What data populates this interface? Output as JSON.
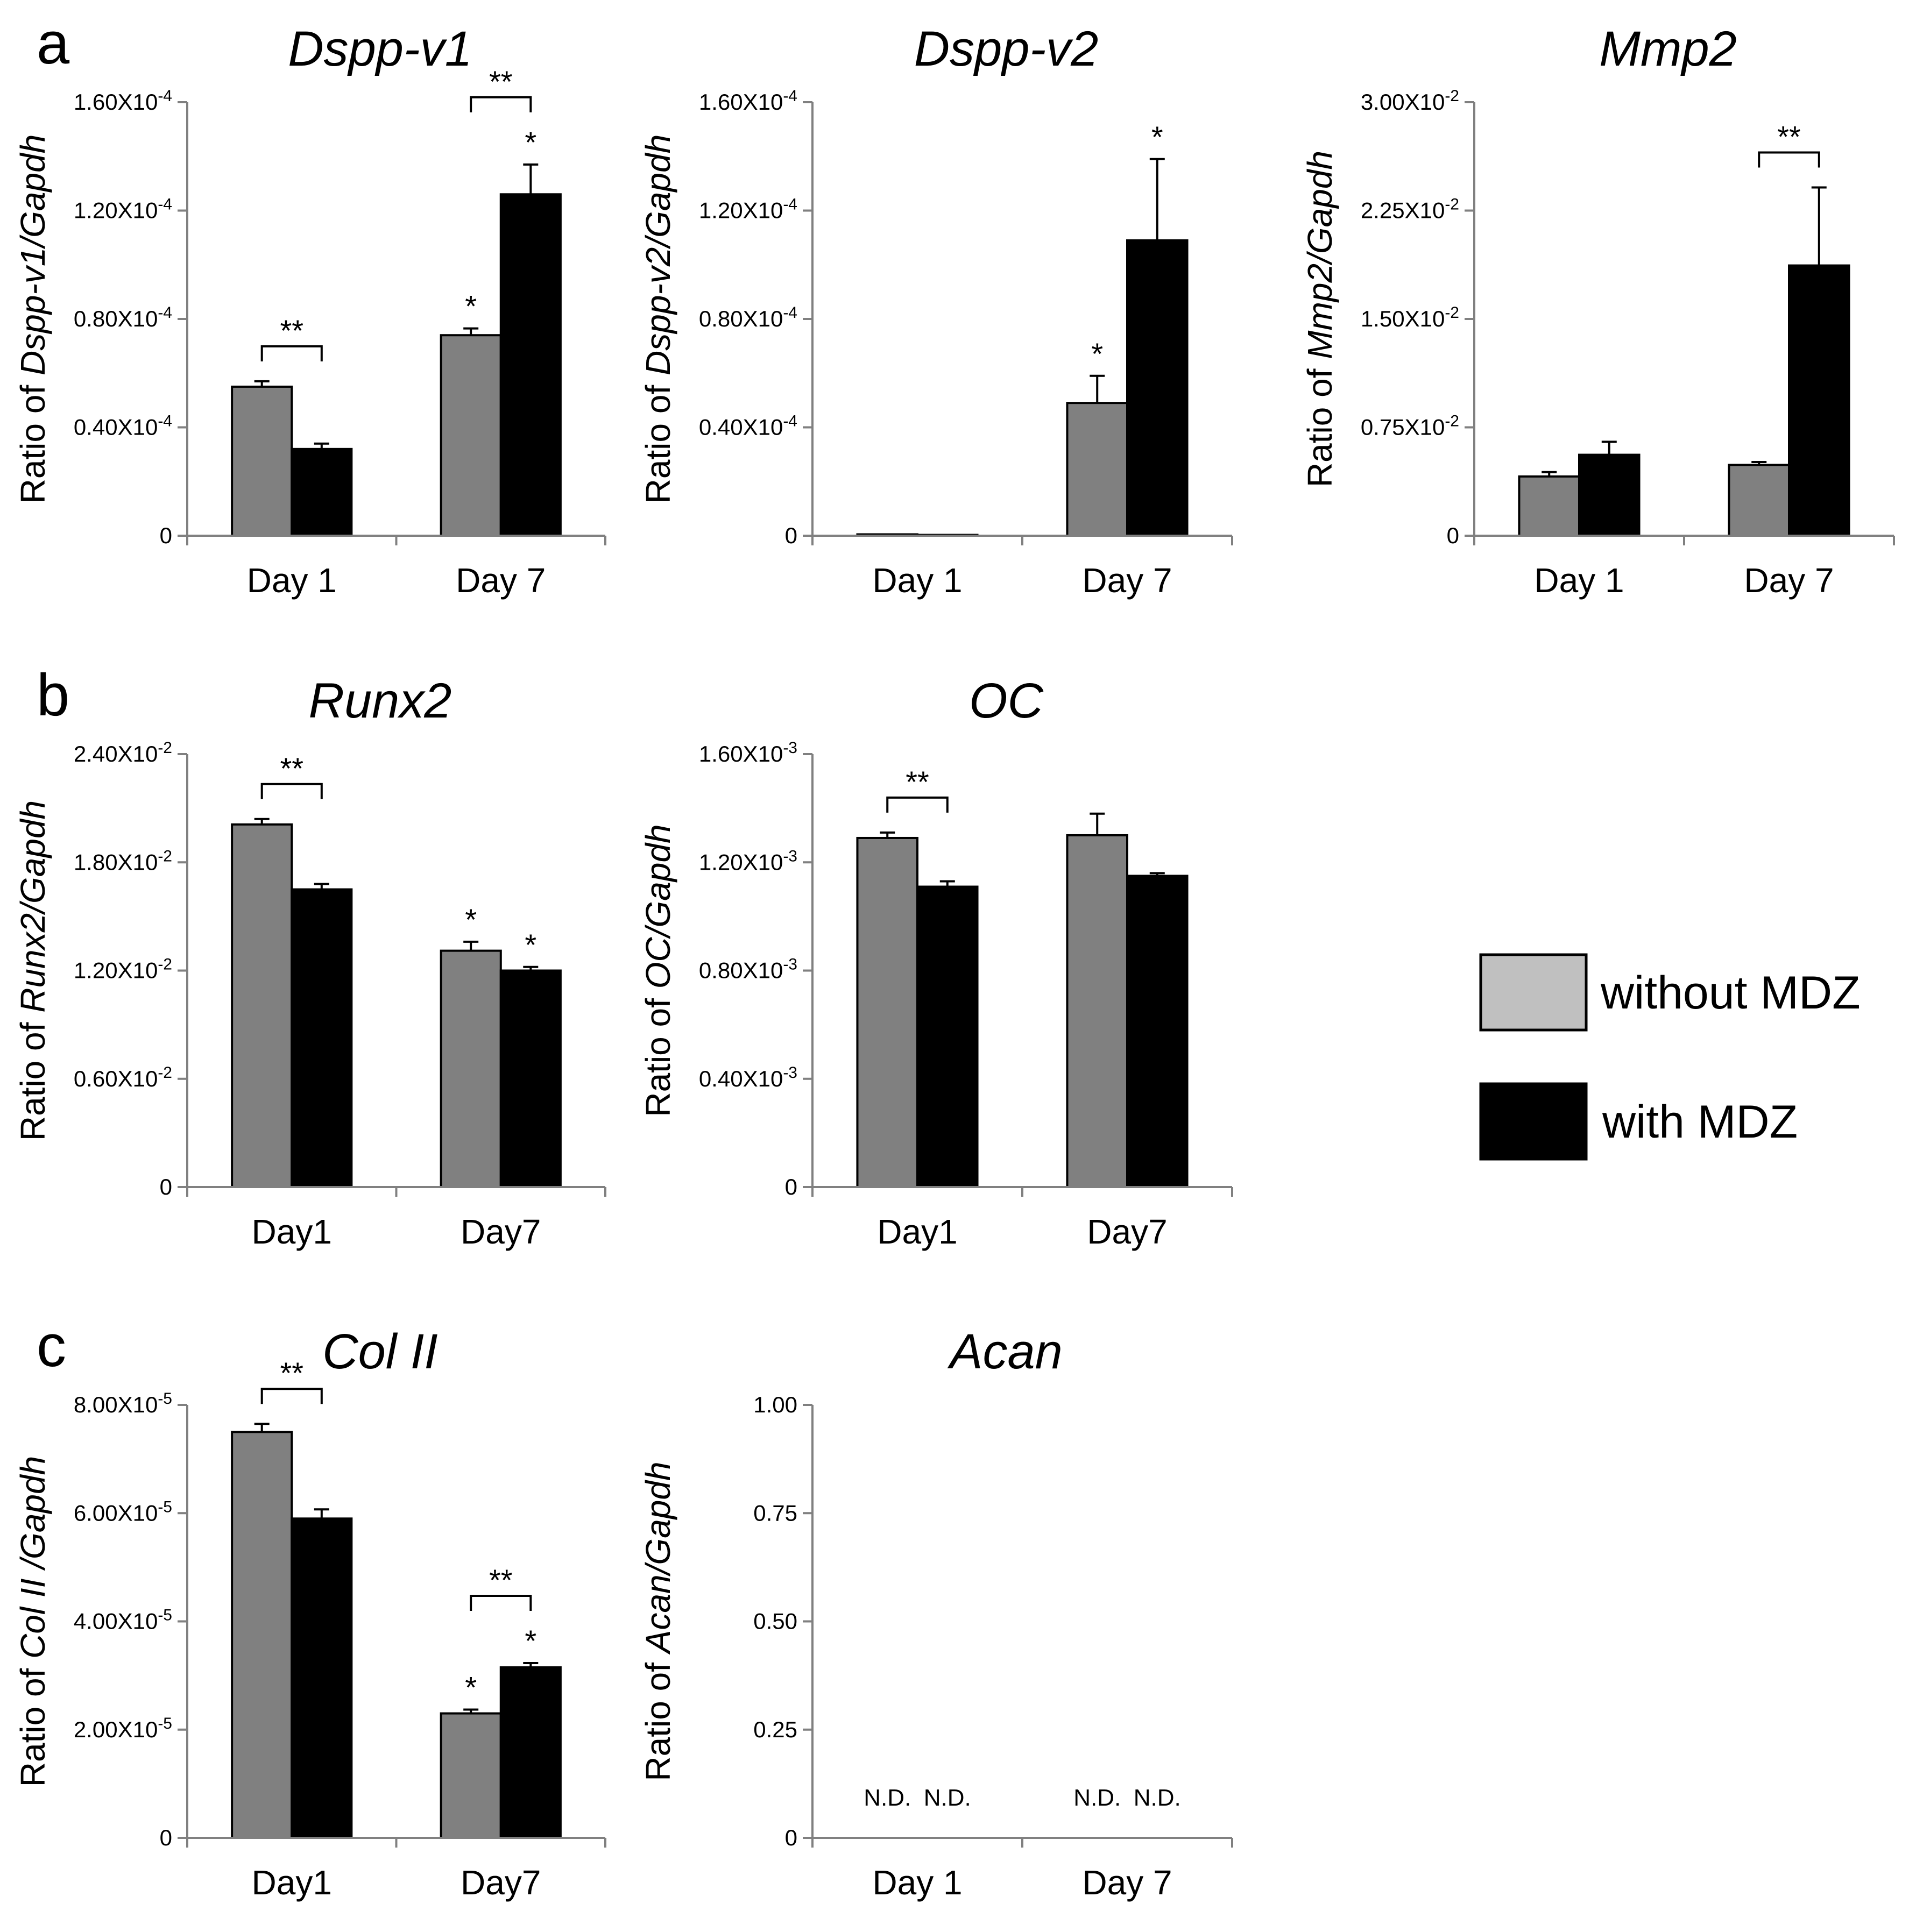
{
  "panel_labels": [
    "a",
    "b",
    "c"
  ],
  "legend": {
    "items": [
      {
        "label": "without MDZ",
        "color": "#c0c0c0"
      },
      {
        "label": "with MDZ",
        "color": "#000000"
      }
    ]
  },
  "colors": {
    "without": "#808080",
    "with": "#000000",
    "axis": "#808080"
  },
  "chart_data": [
    {
      "type": "bar",
      "panel": "a",
      "title": "Dspp-v1",
      "ylabel_prefix": "Ratio of ",
      "ylabel_italic": "Dspp-v1/Gapdh",
      "ylim": [
        0,
        0.00016
      ],
      "yticks": [
        "0",
        "0.40X10-4",
        "0.80X10-4",
        "1.20X10-4",
        "1.60X10-4"
      ],
      "categories": [
        "Day 1",
        "Day 7"
      ],
      "series": [
        {
          "name": "without MDZ",
          "values": [
            5.5e-05,
            7.4e-05
          ],
          "errors": [
            2e-06,
            2.5e-06
          ],
          "stars": [
            "",
            "*"
          ]
        },
        {
          "name": "with MDZ",
          "values": [
            3.2e-05,
            0.000126
          ],
          "errors": [
            2e-06,
            1.1e-05
          ],
          "stars": [
            "",
            "*"
          ]
        }
      ],
      "brackets": [
        {
          "category": 0,
          "label": "**"
        },
        {
          "category": 1,
          "label": "**"
        }
      ],
      "nd": false
    },
    {
      "type": "bar",
      "panel": "a",
      "title": "Dspp-v2",
      "ylabel_prefix": "Ratio of ",
      "ylabel_italic": "Dspp-v2/Gapdh",
      "ylim": [
        0,
        0.00016
      ],
      "yticks": [
        "0",
        "0.40X10-4",
        "0.80X10-4",
        "1.20X10-4",
        "1.60X10-4"
      ],
      "categories": [
        "Day 1",
        "Day 7"
      ],
      "series": [
        {
          "name": "without MDZ",
          "values": [
            5e-07,
            4.9e-05
          ],
          "errors": [
            0,
            1e-05
          ],
          "stars": [
            "",
            "*"
          ]
        },
        {
          "name": "with MDZ",
          "values": [
            3e-07,
            0.000109
          ],
          "errors": [
            0,
            3e-05
          ],
          "stars": [
            "",
            "*"
          ]
        }
      ],
      "brackets": [],
      "nd": false
    },
    {
      "type": "bar",
      "panel": "a",
      "title": "Mmp2",
      "ylabel_prefix": "Ratio of ",
      "ylabel_italic": "Mmp2/Gapdh",
      "ylim": [
        0,
        0.03
      ],
      "yticks": [
        "0",
        "0.75X10-2",
        "1.50X10-2",
        "2.25X10-2",
        "3.00X10-2"
      ],
      "categories": [
        "Day 1",
        "Day 7"
      ],
      "series": [
        {
          "name": "without MDZ",
          "values": [
            0.0041,
            0.0049
          ],
          "errors": [
            0.0003,
            0.0002
          ],
          "stars": [
            "",
            ""
          ]
        },
        {
          "name": "with MDZ",
          "values": [
            0.0056,
            0.0187
          ],
          "errors": [
            0.0009,
            0.0054
          ],
          "stars": [
            "",
            ""
          ]
        }
      ],
      "brackets": [
        {
          "category": 1,
          "label": "**"
        }
      ],
      "nd": false
    },
    {
      "type": "bar",
      "panel": "b",
      "title": "Runx2",
      "ylabel_prefix": "Ratio of ",
      "ylabel_italic": "Runx2/Gapdh",
      "ylim": [
        0,
        0.024
      ],
      "yticks": [
        "0",
        "0.60X10-2",
        "1.20X10-2",
        "1.80X10-2",
        "2.40X10-2"
      ],
      "categories": [
        "Day1",
        "Day7"
      ],
      "series": [
        {
          "name": "without MDZ",
          "values": [
            0.0201,
            0.0131
          ],
          "errors": [
            0.0003,
            0.0005
          ],
          "stars": [
            "",
            "*"
          ]
        },
        {
          "name": "with MDZ",
          "values": [
            0.0165,
            0.012
          ],
          "errors": [
            0.0003,
            0.0002
          ],
          "stars": [
            "",
            "*"
          ]
        }
      ],
      "brackets": [
        {
          "category": 0,
          "label": "**"
        }
      ],
      "nd": false
    },
    {
      "type": "bar",
      "panel": "b",
      "title": "OC",
      "ylabel_prefix": "Ratio of ",
      "ylabel_italic": "OC/Gapdh",
      "ylim": [
        0,
        0.0016
      ],
      "yticks": [
        "0",
        "0.40X10-3",
        "0.80X10-3",
        "1.20X10-3",
        "1.60X10-3"
      ],
      "categories": [
        "Day1",
        "Day7"
      ],
      "series": [
        {
          "name": "without MDZ",
          "values": [
            0.00129,
            0.0013
          ],
          "errors": [
            2e-05,
            8e-05
          ],
          "stars": [
            "",
            ""
          ]
        },
        {
          "name": "with MDZ",
          "values": [
            0.00111,
            0.00115
          ],
          "errors": [
            2e-05,
            1e-05
          ],
          "stars": [
            "",
            ""
          ]
        }
      ],
      "brackets": [
        {
          "category": 0,
          "label": "**"
        }
      ],
      "nd": false
    },
    {
      "type": "bar",
      "panel": "c",
      "title": "Col II",
      "ylabel_prefix": "Ratio of ",
      "ylabel_italic": "Col II /Gapdh",
      "ylim": [
        0,
        8e-05
      ],
      "yticks": [
        "0",
        "2.00X10-5",
        "4.00X10-5",
        "6.00X10-5",
        "8.00X10-5"
      ],
      "categories": [
        "Day1",
        "Day7"
      ],
      "series": [
        {
          "name": "without MDZ",
          "values": [
            7.5e-05,
            2.3e-05
          ],
          "errors": [
            1.5e-06,
            7e-07
          ],
          "stars": [
            "",
            "*"
          ]
        },
        {
          "name": "with MDZ",
          "values": [
            5.9e-05,
            3.15e-05
          ],
          "errors": [
            1.7e-06,
            8e-07
          ],
          "stars": [
            "",
            "*"
          ]
        }
      ],
      "brackets": [
        {
          "category": 0,
          "label": "**"
        },
        {
          "category": 1,
          "label": "**"
        }
      ],
      "nd": false
    },
    {
      "type": "bar",
      "panel": "c",
      "title": "Acan",
      "ylabel_prefix": "Ratio of ",
      "ylabel_italic": "Acan/Gapdh",
      "ylim": [
        0,
        1.0
      ],
      "yticks": [
        "0",
        "0.25",
        "0.50",
        "0.75",
        "1.00"
      ],
      "categories": [
        "Day 1",
        "Day 7"
      ],
      "series": [
        {
          "name": "without MDZ",
          "values": [
            0,
            0
          ],
          "errors": [
            0,
            0
          ],
          "stars": [
            "",
            ""
          ]
        },
        {
          "name": "with MDZ",
          "values": [
            0,
            0
          ],
          "errors": [
            0,
            0
          ],
          "stars": [
            "",
            ""
          ]
        }
      ],
      "brackets": [],
      "nd": true,
      "nd_label": "N.D."
    }
  ]
}
